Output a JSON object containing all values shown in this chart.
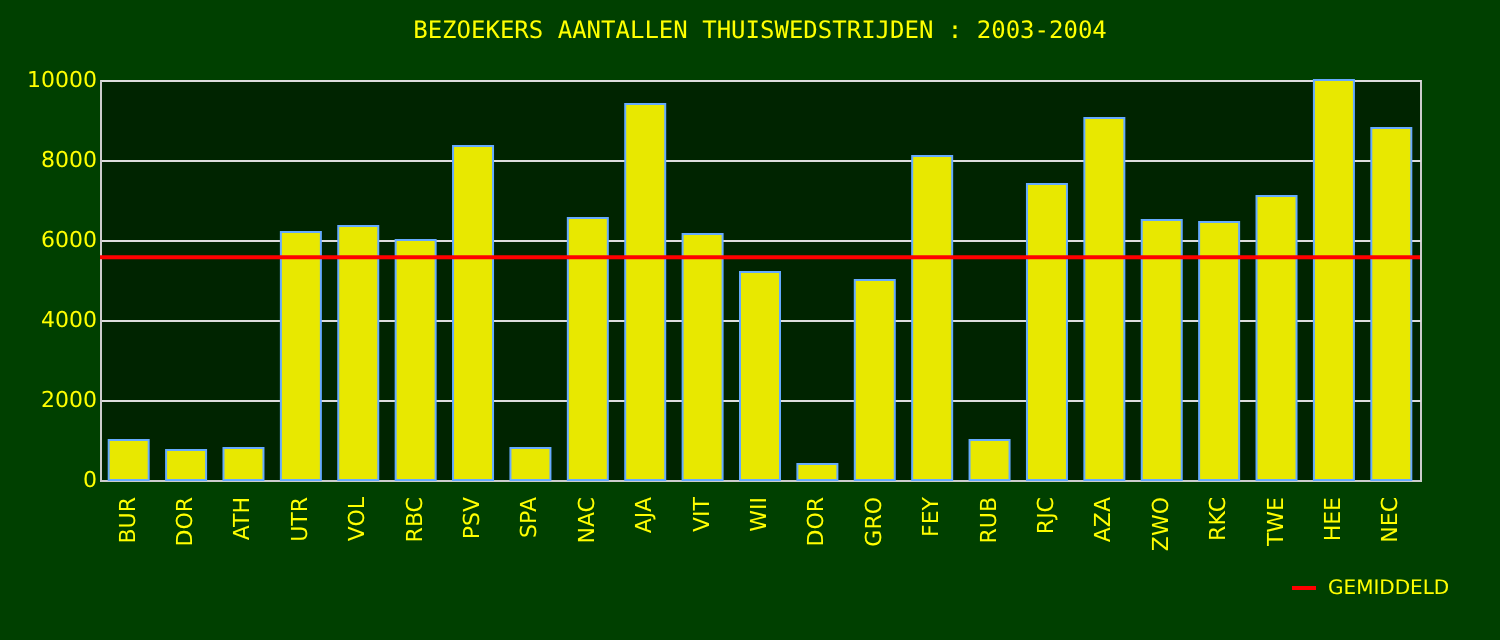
{
  "chart_data": {
    "type": "bar",
    "title": "BEZOEKERS AANTALLEN THUISWEDSTRIJDEN : 2003-2004",
    "categories": [
      "BUR",
      "DOR",
      "ATH",
      "UTR",
      "VOL",
      "RBC",
      "PSV",
      "SPA",
      "NAC",
      "AJA",
      "VIT",
      "WII",
      "DOR",
      "GRO",
      "FEY",
      "RUB",
      "RJC",
      "AZA",
      "ZWO",
      "RKC",
      "TWE",
      "HEE",
      "NEC"
    ],
    "values": [
      1000,
      750,
      800,
      6200,
      6350,
      6000,
      8350,
      800,
      6550,
      9400,
      6150,
      5200,
      400,
      5000,
      8100,
      1000,
      7400,
      9050,
      6500,
      6450,
      7100,
      10000,
      8800
    ],
    "color": "#e8e800",
    "ylim": [
      0,
      10000
    ],
    "yticks": [
      0,
      2000,
      4000,
      6000,
      8000,
      10000
    ],
    "grid": "y",
    "ref_lines": [
      {
        "axis": "y",
        "value": 5570,
        "label": "GEMIDDELD",
        "color": "#ff0000"
      }
    ],
    "legend": "bottom right"
  }
}
